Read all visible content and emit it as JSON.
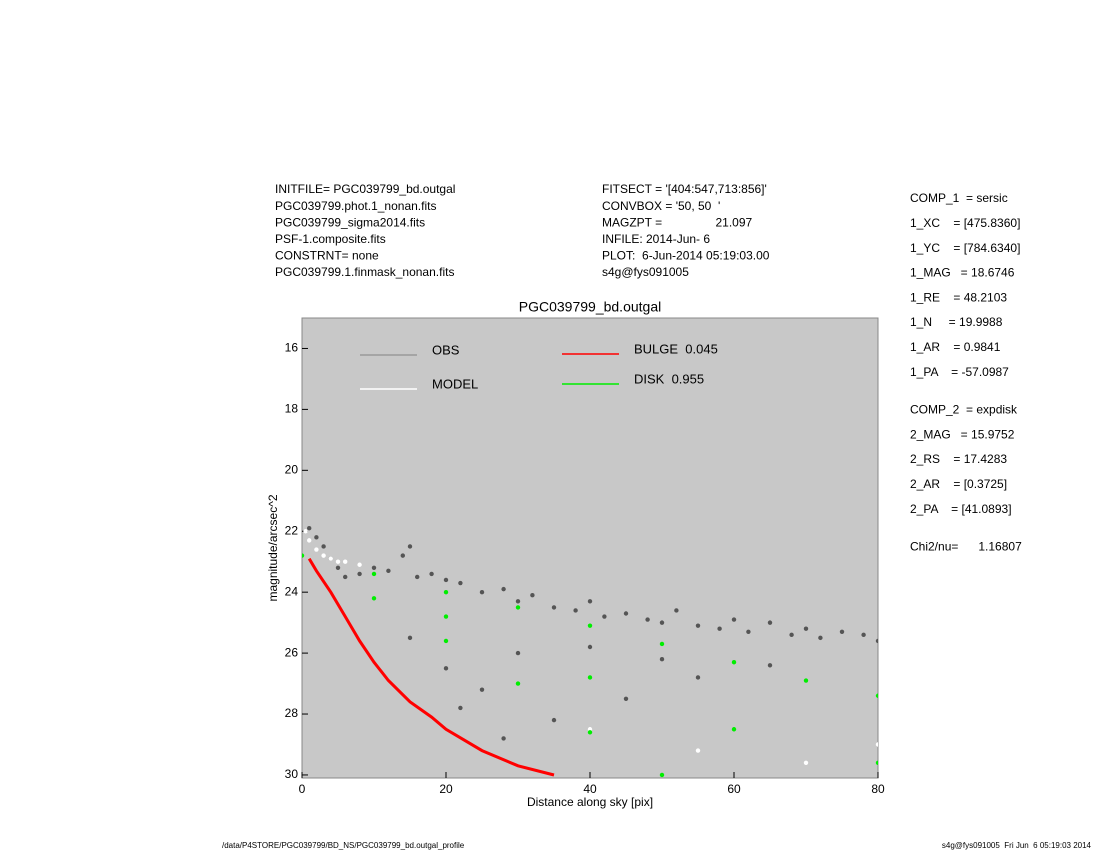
{
  "chart_data": {
    "type": "scatter",
    "title": "PGC039799_bd.outgal",
    "x_label": "Distance along sky [pix]",
    "y_label": "magnitude/arcsec^2",
    "xlim": [
      0,
      80
    ],
    "ylim": [
      15,
      30.1
    ],
    "y_inverted": true,
    "xticks": [
      0,
      20,
      40,
      60,
      80
    ],
    "yticks": [
      16,
      18,
      20,
      22,
      24,
      26,
      28,
      30
    ],
    "background": "#c8c8c8",
    "info_left": [
      "INITFILE= PGC039799_bd.outgal",
      "PGC039799.phot.1_nonan.fits",
      "PGC039799_sigma2014.fits",
      "PSF-1.composite.fits",
      "CONSTRNT= none",
      "PGC039799.1.finmask_nonan.fits"
    ],
    "info_middle": [
      "FITSECT = '[404:547,713:856]'",
      "CONVBOX = '50, 50  '",
      "MAGZPT =                21.097",
      "INFILE: 2014-Jun- 6",
      "PLOT:  6-Jun-2014 05:19:03.00",
      "s4g@fys091005"
    ],
    "parameters": [
      [
        "COMP_1  = sersic",
        "1_XC    = [475.8360]",
        "1_YC    = [784.6340]",
        "1_MAG   = 18.6746",
        "1_RE    = 48.2103",
        "1_N     = 19.9988",
        "1_AR    = 0.9841",
        "1_PA    = -57.0987"
      ],
      [
        "COMP_2  = expdisk",
        "2_MAG   = 15.9752",
        "2_RS    = 17.4283",
        "2_AR    = [0.3725]",
        "2_PA    = [41.0893]"
      ],
      [
        "Chi2/nu=      1.16807"
      ]
    ],
    "footer_left": "/data/P4STORE/PGC039799/BD_NS/PGC039799_bd.outgal_profile",
    "footer_right": "s4g@fys091005  Fri Jun  6 05:19:03 2014",
    "series": [
      {
        "name": "OBS",
        "color": "#555555",
        "legend_color": "#999999",
        "style": "points",
        "x": [
          1,
          2,
          3,
          4,
          5,
          6,
          8,
          10,
          12,
          14,
          15,
          16,
          18,
          20,
          22,
          25,
          28,
          30,
          32,
          35,
          38,
          40,
          42,
          45,
          48,
          50,
          52,
          55,
          58,
          60,
          62,
          65,
          68,
          70,
          72,
          75,
          78,
          80,
          20,
          25,
          30,
          35,
          45,
          55,
          65,
          15,
          22,
          28,
          40,
          50
        ],
        "y": [
          21.9,
          22.2,
          22.5,
          22.9,
          23.2,
          23.5,
          23.4,
          23.2,
          23.3,
          22.8,
          22.5,
          23.5,
          23.4,
          23.6,
          23.7,
          24.0,
          23.9,
          24.3,
          24.1,
          24.5,
          24.6,
          24.3,
          24.8,
          24.7,
          24.9,
          25.0,
          24.6,
          25.1,
          25.2,
          24.9,
          25.3,
          25.0,
          25.4,
          25.2,
          25.5,
          25.3,
          25.4,
          25.6,
          26.5,
          27.2,
          26.0,
          28.2,
          27.5,
          26.8,
          26.4,
          25.5,
          27.8,
          28.8,
          25.8,
          26.2
        ]
      },
      {
        "name": "MODEL",
        "color": "#ffffff",
        "style": "points",
        "x": [
          0.5,
          1,
          2,
          3,
          4,
          5,
          6,
          8,
          40,
          55,
          70,
          80
        ],
        "y": [
          22.0,
          22.3,
          22.6,
          22.8,
          22.9,
          23.0,
          23.0,
          23.1,
          28.5,
          29.2,
          29.6,
          29.0
        ]
      },
      {
        "name": "BULGE  0.045",
        "color": "#ff0000",
        "style": "line",
        "x": [
          1,
          2,
          4,
          6,
          8,
          10,
          12,
          15,
          18,
          20,
          25,
          30,
          35
        ],
        "y": [
          22.9,
          23.3,
          24.0,
          24.8,
          25.6,
          26.3,
          26.9,
          27.6,
          28.1,
          28.5,
          29.2,
          29.7,
          30.0
        ]
      },
      {
        "name": "DISK  0.955",
        "color": "#00ee00",
        "style": "points",
        "x": [
          0,
          10,
          20,
          30,
          40,
          50,
          60,
          70,
          80,
          10,
          20,
          30,
          40,
          50,
          20,
          40,
          60,
          80
        ],
        "y": [
          22.8,
          23.4,
          24.0,
          24.5,
          25.1,
          25.7,
          26.3,
          26.9,
          27.4,
          24.2,
          25.6,
          27.0,
          28.6,
          30.0,
          24.8,
          26.8,
          28.5,
          29.6
        ]
      }
    ]
  }
}
